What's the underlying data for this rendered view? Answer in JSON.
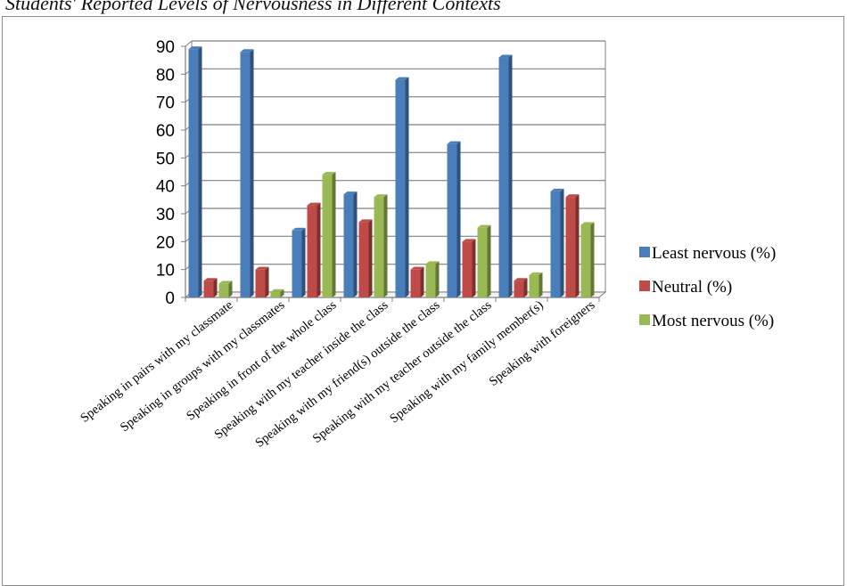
{
  "caption": "Students' Reported Levels of Nervousness in Different Contexts",
  "chart_data": {
    "type": "bar",
    "title": "",
    "xlabel": "",
    "ylabel": "",
    "ylim": [
      0,
      90
    ],
    "yticks": [
      0,
      10,
      20,
      30,
      40,
      50,
      60,
      70,
      80,
      90
    ],
    "grid": true,
    "legend_position": "right",
    "categories": [
      "Speaking in pairs with my classmate",
      "Speaking in groups with my classmates",
      "Speaking in front of the whole class",
      "Speaking with my teacher inside the class",
      "Speaking with my friend(s) outside the class",
      "Speaking with my teacher outside the class",
      "Speaking with my family member(s)",
      "Speaking with foreigners"
    ],
    "series": [
      {
        "name": "Least nervous (%)",
        "color": "#4a7ebb",
        "values": [
          89,
          88,
          24,
          37,
          78,
          55,
          86,
          38
        ]
      },
      {
        "name": "Neutral (%)",
        "color": "#be4b48",
        "values": [
          6,
          10,
          33,
          27,
          10,
          20,
          6,
          36
        ]
      },
      {
        "name": "Most nervous (%)",
        "color": "#98b954",
        "values": [
          5,
          2,
          44,
          36,
          12,
          25,
          8,
          26
        ]
      }
    ]
  }
}
